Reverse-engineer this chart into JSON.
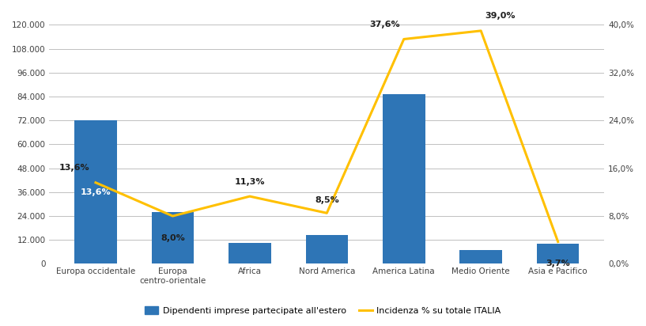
{
  "categories": [
    "Europa occidentale",
    "Europa\ncentro-orientale",
    "Africa",
    "Nord America",
    "America Latina",
    "Medio Oriente",
    "Asia e Pacifico"
  ],
  "bar_values": [
    72000,
    26000,
    10500,
    14500,
    85000,
    7000,
    10000
  ],
  "line_values": [
    13.6,
    8.0,
    11.3,
    8.5,
    37.6,
    39.0,
    3.7
  ],
  "line_labels": [
    "13,6%",
    "8,0%",
    "11,3%",
    "8,5%",
    "37,6%",
    "39,0%",
    "3,7%"
  ],
  "bar_color": "#2E75B6",
  "line_color": "#FFC000",
  "ylim_left": [
    0,
    120000
  ],
  "ylim_right": [
    0,
    40.0
  ],
  "yticks_left": [
    0,
    12000,
    24000,
    36000,
    48000,
    60000,
    72000,
    84000,
    96000,
    108000,
    120000
  ],
  "yticks_right": [
    0.0,
    8.0,
    16.0,
    24.0,
    32.0,
    40.0
  ],
  "ytick_labels_left": [
    "0",
    "12.000",
    "24.000",
    "36.000",
    "48.000",
    "60.000",
    "72.000",
    "84.000",
    "96.000",
    "108.000",
    "120.000"
  ],
  "ytick_labels_right": [
    "0,0%",
    "8,0%",
    "16,0%",
    "24,0%",
    "32,0%",
    "40,0%"
  ],
  "legend_bar_label": "Dipendenti imprese partecipate all'estero",
  "legend_line_label": "Incidenza % su totale ITALIA",
  "background_color": "#FFFFFF",
  "grid_color": "#C0C0C0",
  "inside_bar_label_index": 0,
  "inside_bar_label_text": "13,6%",
  "inside_bar_label_color": "#FFFFFF"
}
